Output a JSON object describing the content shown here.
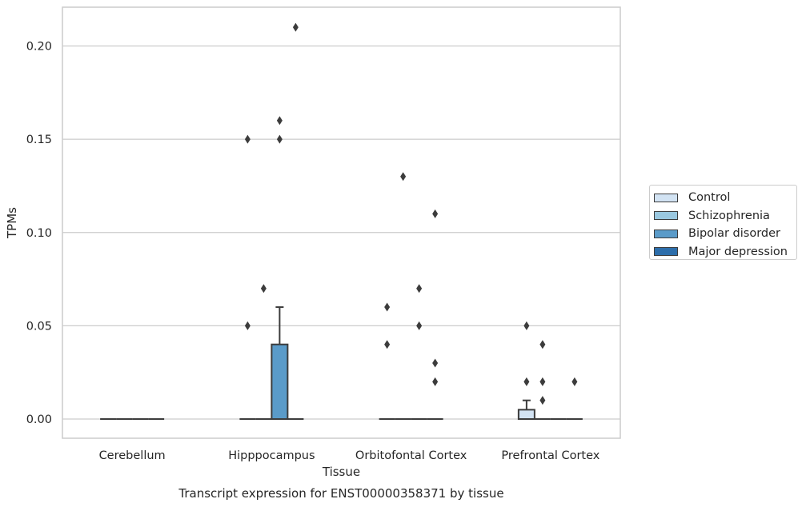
{
  "chart_data": {
    "type": "box",
    "title": "",
    "caption": "Transcript expression for ENST00000358371 by tissue",
    "xlabel": "Tissue",
    "ylabel": "TPMs",
    "ylim": [
      -0.01,
      0.22
    ],
    "yticks": [
      "0.00",
      "0.05",
      "0.10",
      "0.15",
      "0.20"
    ],
    "ytick_values": [
      0.0,
      0.05,
      0.1,
      0.15,
      0.2
    ],
    "grid": "horizontal",
    "legend_position": "right",
    "categories": [
      "Cerebellum",
      "Hipppocampus",
      "Orbitofontal Cortex",
      "Prefrontal Cortex"
    ],
    "series": [
      {
        "name": "Control",
        "color": "#d2e3f3",
        "boxes": [
          {
            "q1": 0,
            "median": 0,
            "q3": 0,
            "whisker_low": 0,
            "whisker_high": 0,
            "outliers": []
          },
          {
            "q1": 0,
            "median": 0,
            "q3": 0,
            "whisker_low": 0,
            "whisker_high": 0,
            "outliers": [
              0.15,
              0.05
            ]
          },
          {
            "q1": 0,
            "median": 0,
            "q3": 0,
            "whisker_low": 0,
            "whisker_high": 0,
            "outliers": [
              0.06,
              0.04
            ]
          },
          {
            "q1": 0,
            "median": 0,
            "q3": 0.005,
            "whisker_low": 0,
            "whisker_high": 0.01,
            "outliers": [
              0.05,
              0.02
            ]
          }
        ]
      },
      {
        "name": "Schizophrenia",
        "color": "#9ac8e0",
        "boxes": [
          {
            "q1": 0,
            "median": 0,
            "q3": 0,
            "whisker_low": 0,
            "whisker_high": 0,
            "outliers": []
          },
          {
            "q1": 0,
            "median": 0,
            "q3": 0,
            "whisker_low": 0,
            "whisker_high": 0,
            "outliers": [
              0.07
            ]
          },
          {
            "q1": 0,
            "median": 0,
            "q3": 0,
            "whisker_low": 0,
            "whisker_high": 0,
            "outliers": [
              0.13
            ]
          },
          {
            "q1": 0,
            "median": 0,
            "q3": 0,
            "whisker_low": 0,
            "whisker_high": 0,
            "outliers": [
              0.04,
              0.02,
              0.01
            ]
          }
        ]
      },
      {
        "name": "Bipolar disorder",
        "color": "#5a9bc9",
        "boxes": [
          {
            "q1": 0,
            "median": 0,
            "q3": 0,
            "whisker_low": 0,
            "whisker_high": 0,
            "outliers": []
          },
          {
            "q1": 0,
            "median": 0,
            "q3": 0.04,
            "whisker_low": 0,
            "whisker_high": 0.06,
            "outliers": [
              0.16,
              0.15
            ]
          },
          {
            "q1": 0,
            "median": 0,
            "q3": 0,
            "whisker_low": 0,
            "whisker_high": 0,
            "outliers": [
              0.07,
              0.05
            ]
          },
          {
            "q1": 0,
            "median": 0,
            "q3": 0,
            "whisker_low": 0,
            "whisker_high": 0,
            "outliers": []
          }
        ]
      },
      {
        "name": "Major depression",
        "color": "#2d6eab",
        "boxes": [
          {
            "q1": 0,
            "median": 0,
            "q3": 0,
            "whisker_low": 0,
            "whisker_high": 0,
            "outliers": []
          },
          {
            "q1": 0,
            "median": 0,
            "q3": 0,
            "whisker_low": 0,
            "whisker_high": 0,
            "outliers": [
              0.21
            ]
          },
          {
            "q1": 0,
            "median": 0,
            "q3": 0,
            "whisker_low": 0,
            "whisker_high": 0,
            "outliers": [
              0.11,
              0.03,
              0.02
            ]
          },
          {
            "q1": 0,
            "median": 0,
            "q3": 0,
            "whisker_low": 0,
            "whisker_high": 0,
            "outliers": [
              0.02
            ]
          }
        ]
      }
    ]
  }
}
